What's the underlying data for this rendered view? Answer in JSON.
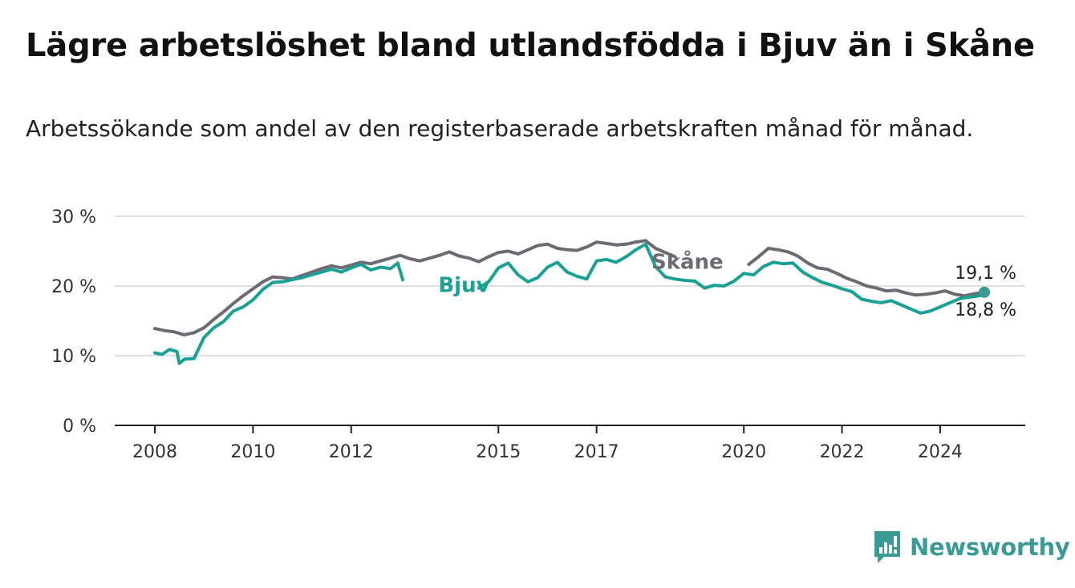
{
  "header": {
    "title": "Lägre arbetslöshet bland utlandsfödda i Bjuv än i Skåne",
    "subtitle": "Arbetssökande som andel av den registerbaserade arbetskraften månad för månad."
  },
  "brand": {
    "name": "Newsworthy",
    "color": "#3a9a96",
    "icon": "bar-chart-flag-icon"
  },
  "chart_data": {
    "type": "line",
    "title": "Lägre arbetslöshet bland utlandsfödda i Bjuv än i Skåne",
    "subtitle": "Arbetssökande som andel av den registerbaserade arbetskraften månad för månad.",
    "xlabel": "",
    "ylabel": "",
    "x_range": [
      2008,
      2024.9
    ],
    "ylim": [
      0,
      30
    ],
    "y_ticks": [
      {
        "value": 0,
        "label": "0 %"
      },
      {
        "value": 10,
        "label": "10 %"
      },
      {
        "value": 20,
        "label": "20 %"
      },
      {
        "value": 30,
        "label": "30 %"
      }
    ],
    "x_ticks": [
      {
        "value": 2008,
        "label": "2008"
      },
      {
        "value": 2010,
        "label": "2010"
      },
      {
        "value": 2012,
        "label": "2012"
      },
      {
        "value": 2015,
        "label": "2015"
      },
      {
        "value": 2017,
        "label": "2017"
      },
      {
        "value": 2020,
        "label": "2020"
      },
      {
        "value": 2022,
        "label": "2022"
      },
      {
        "value": 2024,
        "label": "2024"
      }
    ],
    "grid": true,
    "series": [
      {
        "name": "Skåne",
        "color": "#6e6a72",
        "label_at": [
          2018.85,
          23.6
        ],
        "end_label": "19,1 %",
        "end_value": 19.1,
        "points": [
          [
            2008.0,
            13.9
          ],
          [
            2008.2,
            13.6
          ],
          [
            2008.4,
            13.4
          ],
          [
            2008.6,
            13.0
          ],
          [
            2008.8,
            13.3
          ],
          [
            2009.0,
            14.0
          ],
          [
            2009.2,
            15.2
          ],
          [
            2009.4,
            16.3
          ],
          [
            2009.6,
            17.5
          ],
          [
            2009.8,
            18.6
          ],
          [
            2010.0,
            19.6
          ],
          [
            2010.2,
            20.6
          ],
          [
            2010.4,
            21.3
          ],
          [
            2010.6,
            21.2
          ],
          [
            2010.8,
            21.0
          ],
          [
            2011.0,
            21.5
          ],
          [
            2011.2,
            22.0
          ],
          [
            2011.4,
            22.5
          ],
          [
            2011.6,
            22.9
          ],
          [
            2011.8,
            22.6
          ],
          [
            2012.0,
            23.0
          ],
          [
            2012.2,
            23.4
          ],
          [
            2012.4,
            23.2
          ],
          [
            2012.6,
            23.6
          ],
          [
            2012.8,
            24.0
          ],
          [
            2013.0,
            24.4
          ],
          [
            2013.2,
            23.9
          ],
          [
            2013.4,
            23.6
          ],
          [
            2013.6,
            24.0
          ],
          [
            2013.8,
            24.4
          ],
          [
            2014.0,
            24.9
          ],
          [
            2014.2,
            24.3
          ],
          [
            2014.4,
            24.0
          ],
          [
            2014.6,
            23.5
          ],
          [
            2014.8,
            24.2
          ],
          [
            2015.0,
            24.8
          ],
          [
            2015.2,
            25.0
          ],
          [
            2015.4,
            24.6
          ],
          [
            2015.6,
            25.2
          ],
          [
            2015.8,
            25.8
          ],
          [
            2016.0,
            26.0
          ],
          [
            2016.2,
            25.4
          ],
          [
            2016.4,
            25.2
          ],
          [
            2016.6,
            25.1
          ],
          [
            2016.8,
            25.6
          ],
          [
            2017.0,
            26.3
          ],
          [
            2017.2,
            26.1
          ],
          [
            2017.4,
            25.9
          ],
          [
            2017.6,
            26.0
          ],
          [
            2017.8,
            26.3
          ],
          [
            2018.0,
            26.5
          ],
          [
            2018.2,
            25.4
          ],
          [
            2018.4,
            24.8
          ],
          [
            2018.6,
            24.2
          ]
        ],
        "points_2": [
          [
            2020.1,
            23.1
          ],
          [
            2020.3,
            24.2
          ],
          [
            2020.5,
            25.4
          ],
          [
            2020.7,
            25.2
          ],
          [
            2020.9,
            24.9
          ],
          [
            2021.1,
            24.3
          ],
          [
            2021.3,
            23.3
          ],
          [
            2021.5,
            22.6
          ],
          [
            2021.7,
            22.4
          ],
          [
            2021.9,
            21.8
          ],
          [
            2022.1,
            21.1
          ],
          [
            2022.3,
            20.6
          ],
          [
            2022.5,
            20.0
          ],
          [
            2022.7,
            19.7
          ],
          [
            2022.9,
            19.3
          ],
          [
            2023.1,
            19.4
          ],
          [
            2023.3,
            19.0
          ],
          [
            2023.5,
            18.7
          ],
          [
            2023.7,
            18.8
          ],
          [
            2023.9,
            19.0
          ],
          [
            2024.1,
            19.3
          ],
          [
            2024.3,
            18.8
          ],
          [
            2024.5,
            18.6
          ],
          [
            2024.7,
            18.9
          ],
          [
            2024.9,
            19.1
          ]
        ]
      },
      {
        "name": "Bjuv",
        "color": "#1aa193",
        "label_at": [
          2014.3,
          20.3
        ],
        "end_label": "18,8 %",
        "end_value": 18.8,
        "points": [
          [
            2008.0,
            10.4
          ],
          [
            2008.15,
            10.2
          ],
          [
            2008.3,
            10.9
          ],
          [
            2008.45,
            10.6
          ],
          [
            2008.5,
            8.9
          ],
          [
            2008.6,
            9.5
          ],
          [
            2008.8,
            9.6
          ],
          [
            2009.0,
            12.6
          ],
          [
            2009.2,
            14.0
          ],
          [
            2009.4,
            14.9
          ],
          [
            2009.6,
            16.4
          ],
          [
            2009.8,
            17.0
          ],
          [
            2010.0,
            18.0
          ],
          [
            2010.2,
            19.5
          ],
          [
            2010.4,
            20.5
          ],
          [
            2010.6,
            20.6
          ],
          [
            2010.8,
            20.9
          ],
          [
            2011.0,
            21.2
          ],
          [
            2011.2,
            21.6
          ],
          [
            2011.4,
            22.0
          ],
          [
            2011.6,
            22.4
          ],
          [
            2011.8,
            22.0
          ],
          [
            2012.0,
            22.6
          ],
          [
            2012.2,
            23.1
          ],
          [
            2012.4,
            22.3
          ],
          [
            2012.6,
            22.7
          ],
          [
            2012.8,
            22.5
          ],
          [
            2012.95,
            23.3
          ],
          [
            2013.05,
            20.9
          ]
        ],
        "points_2": [
          [
            2014.6,
            19.7
          ],
          [
            2014.8,
            20.6
          ],
          [
            2015.0,
            22.6
          ],
          [
            2015.2,
            23.3
          ],
          [
            2015.4,
            21.6
          ],
          [
            2015.6,
            20.6
          ],
          [
            2015.8,
            21.2
          ],
          [
            2016.0,
            22.7
          ],
          [
            2016.2,
            23.4
          ],
          [
            2016.4,
            22.0
          ],
          [
            2016.6,
            21.4
          ],
          [
            2016.8,
            21.0
          ],
          [
            2017.0,
            23.6
          ],
          [
            2017.2,
            23.8
          ],
          [
            2017.4,
            23.4
          ],
          [
            2017.6,
            24.2
          ],
          [
            2017.8,
            25.2
          ],
          [
            2018.0,
            26.0
          ],
          [
            2018.2,
            22.8
          ],
          [
            2018.4,
            21.3
          ],
          [
            2018.6,
            21.0
          ],
          [
            2018.8,
            20.8
          ],
          [
            2019.0,
            20.7
          ],
          [
            2019.2,
            19.7
          ],
          [
            2019.4,
            20.1
          ],
          [
            2019.6,
            20.0
          ],
          [
            2019.8,
            20.7
          ],
          [
            2020.0,
            21.8
          ],
          [
            2020.2,
            21.6
          ],
          [
            2020.4,
            22.8
          ],
          [
            2020.6,
            23.4
          ],
          [
            2020.8,
            23.2
          ],
          [
            2021.0,
            23.3
          ],
          [
            2021.2,
            22.0
          ],
          [
            2021.4,
            21.2
          ],
          [
            2021.6,
            20.5
          ],
          [
            2021.8,
            20.1
          ],
          [
            2022.0,
            19.6
          ],
          [
            2022.2,
            19.2
          ],
          [
            2022.4,
            18.1
          ],
          [
            2022.6,
            17.8
          ],
          [
            2022.8,
            17.6
          ],
          [
            2023.0,
            17.9
          ],
          [
            2023.2,
            17.3
          ],
          [
            2023.4,
            16.7
          ],
          [
            2023.6,
            16.1
          ],
          [
            2023.8,
            16.4
          ],
          [
            2024.0,
            17.0
          ],
          [
            2024.2,
            17.6
          ],
          [
            2024.4,
            18.2
          ],
          [
            2024.6,
            18.4
          ],
          [
            2024.8,
            18.6
          ],
          [
            2024.9,
            18.8
          ]
        ]
      }
    ]
  }
}
